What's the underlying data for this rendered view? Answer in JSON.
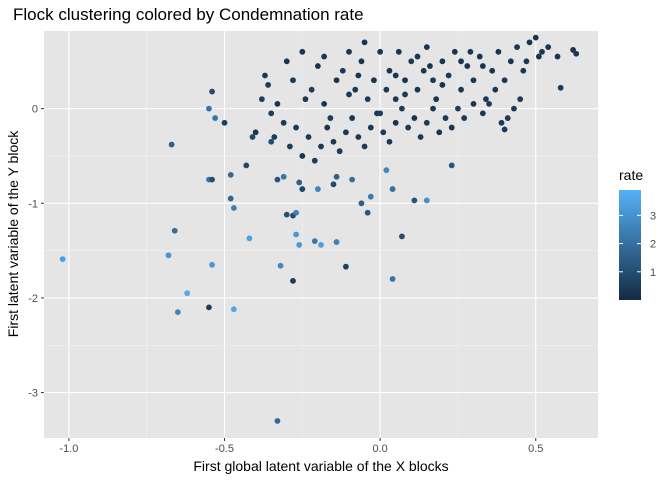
{
  "chart_data": {
    "type": "scatter",
    "title": "Flock clustering colored by Condemnation rate",
    "xlabel": "First global latent variable of the X blocks",
    "ylabel": "First latent variable of the Y block",
    "xlim": [
      -1.08,
      0.7
    ],
    "ylim": [
      -3.48,
      0.82
    ],
    "x_ticks": [
      {
        "value": -1.0,
        "label": "-1.0"
      },
      {
        "value": -0.5,
        "label": "-0.5"
      },
      {
        "value": 0.0,
        "label": "0.0"
      },
      {
        "value": 0.5,
        "label": "0.5"
      }
    ],
    "y_ticks": [
      {
        "value": -3,
        "label": "-3"
      },
      {
        "value": -2,
        "label": "-2"
      },
      {
        "value": -1,
        "label": "-1"
      },
      {
        "value": 0,
        "label": "0"
      }
    ],
    "grid": true,
    "background": "#e5e5e5",
    "legend": {
      "title": "rate",
      "position": "right",
      "range": [
        0,
        3.9
      ],
      "ticks": [
        {
          "value": 1,
          "label": "1"
        },
        {
          "value": 2,
          "label": "2"
        },
        {
          "value": 3,
          "label": "3"
        }
      ],
      "color_low": "#132b43",
      "color_high": "#56b1f7"
    },
    "points": [
      [
        -1.02,
        -1.59,
        3.4
      ],
      [
        -0.67,
        -0.38,
        1.6
      ],
      [
        -0.68,
        -1.55,
        3.1
      ],
      [
        -0.66,
        -1.29,
        2.0
      ],
      [
        -0.65,
        -2.15,
        2.6
      ],
      [
        -0.62,
        -1.95,
        3.7
      ],
      [
        -0.55,
        -2.1,
        0.5
      ],
      [
        -0.54,
        -1.65,
        3.2
      ],
      [
        -0.47,
        -2.12,
        3.6
      ],
      [
        -0.55,
        -0.75,
        2.2
      ],
      [
        -0.54,
        -0.75,
        1.0
      ],
      [
        -0.53,
        -0.1,
        2.2
      ],
      [
        -0.54,
        0.18,
        1.0
      ],
      [
        -0.55,
        0.0,
        2.1
      ],
      [
        -0.5,
        -0.15,
        0.6
      ],
      [
        -0.48,
        -0.95,
        1.7
      ],
      [
        -0.47,
        -1.05,
        2.4
      ],
      [
        -0.42,
        -1.37,
        3.4
      ],
      [
        -0.48,
        -0.7,
        1.8
      ],
      [
        -0.43,
        -0.6,
        0.8
      ],
      [
        -0.35,
        -0.35,
        1.0
      ],
      [
        -0.34,
        -0.3,
        0.5
      ],
      [
        -0.33,
        -0.75,
        1.2
      ],
      [
        -0.31,
        -0.72,
        2.2
      ],
      [
        -0.33,
        -3.3,
        1.8
      ],
      [
        -0.32,
        -1.66,
        2.7
      ],
      [
        -0.28,
        -1.82,
        0.4
      ],
      [
        -0.27,
        -1.33,
        3.1
      ],
      [
        -0.26,
        -1.44,
        3.2
      ],
      [
        -0.28,
        -1.13,
        1.0
      ],
      [
        -0.3,
        -1.12,
        1.1
      ],
      [
        -0.27,
        -1.1,
        2.5
      ],
      [
        -0.26,
        -0.78,
        1.5
      ],
      [
        -0.25,
        -0.85,
        0.8
      ],
      [
        -0.21,
        -1.4,
        2.2
      ],
      [
        -0.19,
        -1.44,
        3.4
      ],
      [
        -0.2,
        -0.85,
        2.6
      ],
      [
        -0.14,
        -1.41,
        2.5
      ],
      [
        -0.11,
        -1.67,
        0.6
      ],
      [
        -0.15,
        -0.8,
        0.9
      ],
      [
        -0.14,
        -0.72,
        1.6
      ],
      [
        -0.09,
        -0.75,
        2.0
      ],
      [
        -0.06,
        -1.0,
        1.5
      ],
      [
        -0.04,
        -1.1,
        1.3
      ],
      [
        -0.03,
        -0.93,
        2.3
      ],
      [
        0.04,
        -1.8,
        2.1
      ],
      [
        0.07,
        -1.35,
        1.0
      ],
      [
        0.11,
        -0.97,
        1.2
      ],
      [
        0.15,
        -0.97,
        2.8
      ],
      [
        0.23,
        -0.6,
        1.3
      ],
      [
        0.04,
        -0.85,
        2.0
      ],
      [
        0.02,
        -0.65,
        2.7
      ],
      [
        -0.37,
        0.35,
        0.5
      ],
      [
        -0.36,
        0.25,
        0.5
      ],
      [
        -0.38,
        0.1,
        0.6
      ],
      [
        -0.4,
        -0.25,
        0.4
      ],
      [
        -0.41,
        -0.3,
        0.8
      ],
      [
        -0.3,
        0.5,
        0.3
      ],
      [
        -0.28,
        0.3,
        0.4
      ],
      [
        -0.25,
        0.6,
        0.3
      ],
      [
        -0.24,
        0.1,
        0.4
      ],
      [
        -0.22,
        0.2,
        0.5
      ],
      [
        -0.2,
        0.45,
        0.3
      ],
      [
        -0.18,
        0.55,
        0.4
      ],
      [
        -0.16,
        -0.1,
        0.5
      ],
      [
        -0.14,
        0.3,
        0.3
      ],
      [
        -0.12,
        0.4,
        0.4
      ],
      [
        -0.1,
        0.6,
        0.3
      ],
      [
        -0.08,
        0.2,
        0.4
      ],
      [
        -0.06,
        0.5,
        0.3
      ],
      [
        -0.05,
        0.7,
        0.3
      ],
      [
        -0.04,
        0.1,
        0.5
      ],
      [
        -0.02,
        0.3,
        0.3
      ],
      [
        0.0,
        0.6,
        0.3
      ],
      [
        0.02,
        0.2,
        0.4
      ],
      [
        0.03,
        0.4,
        0.3
      ],
      [
        0.05,
        0.1,
        0.4
      ],
      [
        0.06,
        0.6,
        0.3
      ],
      [
        0.08,
        0.3,
        0.3
      ],
      [
        0.1,
        0.5,
        0.4
      ],
      [
        0.12,
        0.2,
        0.3
      ],
      [
        0.14,
        0.4,
        0.4
      ],
      [
        0.15,
        0.65,
        0.3
      ],
      [
        0.17,
        0.3,
        0.4
      ],
      [
        0.18,
        0.1,
        0.3
      ],
      [
        0.2,
        0.5,
        0.3
      ],
      [
        0.22,
        0.35,
        0.4
      ],
      [
        0.24,
        0.6,
        0.3
      ],
      [
        0.26,
        0.2,
        0.4
      ],
      [
        0.28,
        0.45,
        0.3
      ],
      [
        0.3,
        0.3,
        0.4
      ],
      [
        0.32,
        0.55,
        0.3
      ],
      [
        0.34,
        0.1,
        0.4
      ],
      [
        0.36,
        0.4,
        0.3
      ],
      [
        0.38,
        0.6,
        0.3
      ],
      [
        0.4,
        0.3,
        0.4
      ],
      [
        0.42,
        0.5,
        0.3
      ],
      [
        0.44,
        0.65,
        0.3
      ],
      [
        0.46,
        0.4,
        0.4
      ],
      [
        0.48,
        0.7,
        0.3
      ],
      [
        0.5,
        0.75,
        0.3
      ],
      [
        0.52,
        0.6,
        0.4
      ],
      [
        0.54,
        0.65,
        0.3
      ],
      [
        0.57,
        0.55,
        0.3
      ],
      [
        0.58,
        0.22,
        0.5
      ],
      [
        0.62,
        0.62,
        0.3
      ],
      [
        0.63,
        0.58,
        0.4
      ],
      [
        0.45,
        0.1,
        0.5
      ],
      [
        0.43,
        0.0,
        0.4
      ],
      [
        0.41,
        -0.1,
        0.5
      ],
      [
        0.39,
        -0.15,
        0.4
      ],
      [
        0.4,
        -0.22,
        0.5
      ],
      [
        0.33,
        -0.05,
        0.4
      ],
      [
        0.3,
        0.05,
        0.3
      ],
      [
        0.27,
        -0.1,
        0.4
      ],
      [
        0.25,
        0.0,
        0.5
      ],
      [
        0.23,
        -0.2,
        0.3
      ],
      [
        0.21,
        -0.1,
        0.4
      ],
      [
        0.19,
        -0.25,
        0.3
      ],
      [
        0.17,
        0.0,
        0.4
      ],
      [
        0.15,
        -0.15,
        0.5
      ],
      [
        0.13,
        -0.3,
        0.4
      ],
      [
        0.11,
        -0.1,
        0.3
      ],
      [
        0.09,
        -0.2,
        0.4
      ],
      [
        0.07,
        0.0,
        0.5
      ],
      [
        0.05,
        -0.15,
        0.3
      ],
      [
        0.03,
        -0.35,
        0.4
      ],
      [
        0.01,
        -0.25,
        0.5
      ],
      [
        -0.01,
        -0.05,
        0.3
      ],
      [
        -0.03,
        -0.2,
        0.4
      ],
      [
        -0.05,
        -0.4,
        0.5
      ],
      [
        -0.07,
        -0.3,
        0.4
      ],
      [
        -0.09,
        -0.1,
        0.3
      ],
      [
        -0.11,
        -0.25,
        0.4
      ],
      [
        -0.13,
        -0.45,
        0.5
      ],
      [
        -0.15,
        -0.35,
        0.4
      ],
      [
        -0.17,
        -0.2,
        0.3
      ],
      [
        -0.19,
        -0.4,
        0.4
      ],
      [
        -0.21,
        -0.55,
        0.5
      ],
      [
        -0.23,
        -0.3,
        0.4
      ],
      [
        -0.25,
        -0.5,
        0.3
      ],
      [
        -0.27,
        -0.2,
        0.4
      ],
      [
        -0.29,
        -0.4,
        0.5
      ],
      [
        -0.31,
        -0.15,
        0.4
      ],
      [
        -0.33,
        0.05,
        0.3
      ],
      [
        -0.35,
        -0.05,
        0.5
      ],
      [
        0.05,
        0.35,
        0.3
      ],
      [
        0.12,
        0.55,
        0.4
      ],
      [
        0.2,
        0.25,
        0.3
      ],
      [
        0.26,
        0.5,
        0.3
      ],
      [
        0.33,
        0.45,
        0.3
      ],
      [
        0.37,
        0.2,
        0.4
      ],
      [
        0.47,
        0.5,
        0.4
      ],
      [
        0.51,
        0.55,
        0.3
      ],
      [
        -0.1,
        0.15,
        0.4
      ],
      [
        -0.18,
        0.05,
        0.3
      ],
      [
        0.0,
        -0.05,
        0.5
      ],
      [
        0.08,
        0.15,
        0.4
      ],
      [
        -0.07,
        0.35,
        0.3
      ],
      [
        0.16,
        0.45,
        0.3
      ],
      [
        0.29,
        0.6,
        0.4
      ],
      [
        0.35,
        0.05,
        0.5
      ]
    ]
  }
}
